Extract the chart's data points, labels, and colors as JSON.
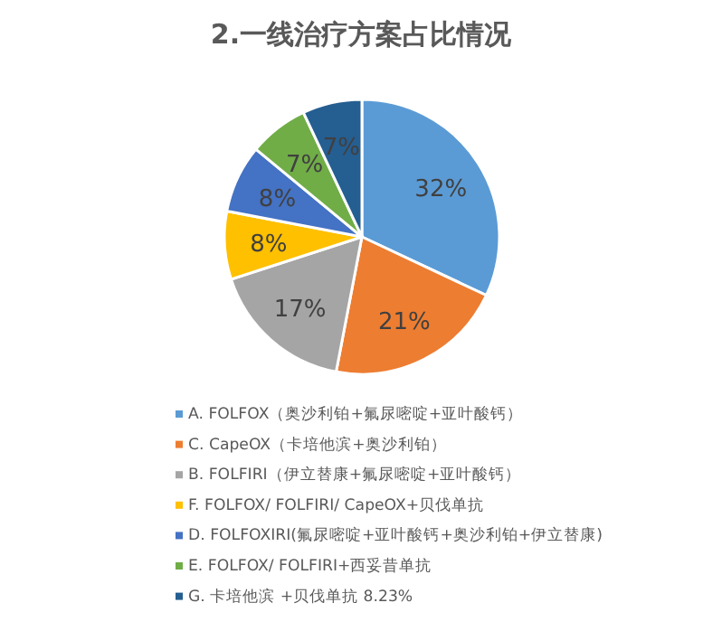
{
  "chart_data": {
    "type": "pie",
    "title": "2.一线治疗方案占比情况",
    "categories": [
      "A. FOLFOX（奥沙利铂+氟尿嘧啶+亚叶酸钙）",
      "C. CapeOX（卡培他滨+奥沙利铂）",
      "B. FOLFIRI（伊立替康+氟尿嘧啶+亚叶酸钙）",
      "F. FOLFOX/ FOLFIRI/ CapeOX+贝伐单抗",
      "D. FOLFOXIRI(氟尿嘧啶+亚叶酸钙+奥沙利铂+伊立替康)",
      "E. FOLFOX/ FOLFIRI+西妥昔单抗",
      "G. 卡培他滨 +贝伐单抗 8.23%"
    ],
    "values": [
      32,
      21,
      17,
      8,
      8,
      7,
      7
    ],
    "value_labels": [
      "32%",
      "21%",
      "17%",
      "8%",
      "8%",
      "7%",
      "7%"
    ],
    "colors": [
      "#5b9bd5",
      "#ed7d31",
      "#a5a5a5",
      "#ffc000",
      "#4472c4",
      "#70ad47",
      "#255e91"
    ],
    "legend": "bottom"
  }
}
